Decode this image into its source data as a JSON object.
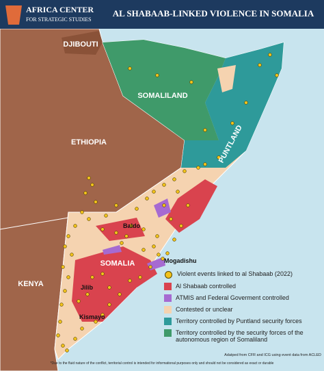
{
  "header": {
    "org_name": "AFRICA CENTER",
    "org_sub": "FOR STRATEGIC STUDIES",
    "title": "AL SHABAAB-LINKED VIOLENCE IN SOMALIA"
  },
  "regions": {
    "djibouti": "DJIBOUTI",
    "somaliland": "SOMALILAND",
    "ethiopia": "ETHIOPIA",
    "puntland": "PUNTLAND",
    "somalia": "SOMALIA",
    "kenya": "KENYA"
  },
  "cities": {
    "baido": "Baido",
    "mogadishu": "Mogadishu",
    "jilib": "Jilib",
    "kismayo": "Kismayo"
  },
  "legend": [
    "Violent events linked to al Shabaab (2022)",
    "Al Shabaab controlled",
    "ATMIS and Federal Goverment controlled",
    "Contested or unclear",
    "Territory controlled by Puntland security forces",
    "Territory controlled by the security forces of the autonomous region of Somaliland"
  ],
  "source": "Adatped from CFR and ICG using event data from ACLED",
  "footnote": "*Due to the fluid nature of the conflict, territorial control is intended for informational purposes only and should not be considered as exact or durable"
}
